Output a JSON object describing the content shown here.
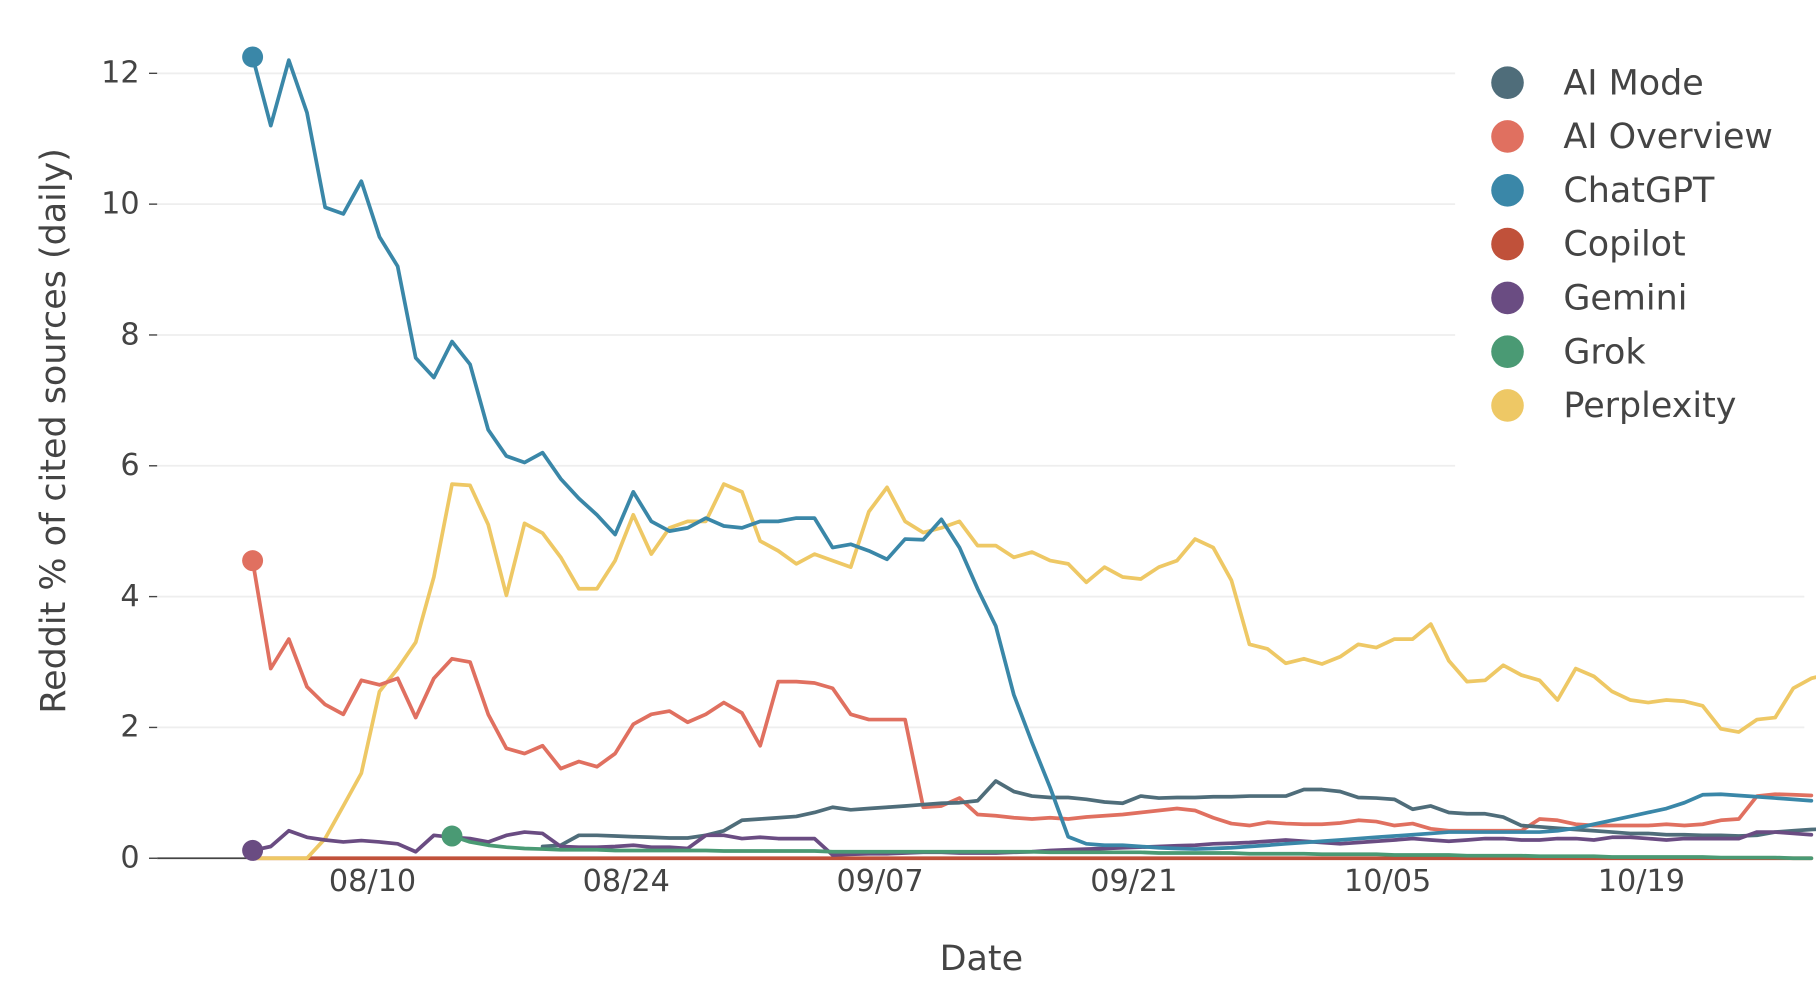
{
  "chart_data": {
    "type": "line",
    "title": "",
    "xlabel": "Date",
    "ylabel": "Reddit % of cited sources (daily)",
    "ylim": [
      0,
      12.5
    ],
    "yticks": [
      0,
      2,
      4,
      6,
      8,
      10,
      12
    ],
    "xtick_labels": [
      "08/10",
      "08/24",
      "09/07",
      "09/21",
      "10/05",
      "10/19"
    ],
    "x_start": "08/04",
    "x_end": "10/29",
    "grid": true,
    "legend_position": "top-right",
    "legend": [
      "AI Mode",
      "AI Overview",
      "ChatGPT",
      "Copilot",
      "Gemini",
      "Grok",
      "Perplexity"
    ],
    "series": [
      {
        "name": "AI Mode",
        "color": "#4f6d7a",
        "start_index": 16,
        "values": [
          0.18,
          0.2,
          0.35,
          0.35,
          0.34,
          0.33,
          0.32,
          0.31,
          0.31,
          0.35,
          0.42,
          0.58,
          0.6,
          0.62,
          0.64,
          0.7,
          0.78,
          0.74,
          0.76,
          0.78,
          0.8,
          0.82,
          0.84,
          0.85,
          0.88,
          1.18,
          1.02,
          0.95,
          0.93,
          0.93,
          0.9,
          0.86,
          0.84,
          0.95,
          0.92,
          0.93,
          0.93,
          0.94,
          0.94,
          0.95,
          0.95,
          0.95,
          1.05,
          1.05,
          1.02,
          0.93,
          0.92,
          0.9,
          0.75,
          0.8,
          0.7,
          0.68,
          0.68,
          0.63,
          0.5,
          0.48,
          0.46,
          0.44,
          0.42,
          0.4,
          0.38,
          0.38,
          0.36,
          0.36,
          0.35,
          0.35,
          0.34,
          0.35,
          0.4,
          0.42,
          0.44,
          0.45
        ]
      },
      {
        "name": "AI Overview",
        "color": "#e07060",
        "start_index": 0,
        "values": [
          4.55,
          2.9,
          3.35,
          2.62,
          2.35,
          2.2,
          2.72,
          2.65,
          2.75,
          2.15,
          2.75,
          3.05,
          3.0,
          2.2,
          1.68,
          1.6,
          1.72,
          1.37,
          1.48,
          1.4,
          1.6,
          2.05,
          2.2,
          2.25,
          2.08,
          2.2,
          2.38,
          2.22,
          1.72,
          2.7,
          2.7,
          2.68,
          2.6,
          2.2,
          2.12,
          2.12,
          2.12,
          0.78,
          0.8,
          0.92,
          0.67,
          0.65,
          0.62,
          0.6,
          0.62,
          0.6,
          0.63,
          0.65,
          0.67,
          0.7,
          0.73,
          0.76,
          0.73,
          0.62,
          0.53,
          0.5,
          0.55,
          0.53,
          0.52,
          0.52,
          0.54,
          0.58,
          0.56,
          0.5,
          0.53,
          0.45,
          0.42,
          0.42,
          0.42,
          0.42,
          0.42,
          0.6,
          0.58,
          0.52,
          0.5,
          0.5,
          0.5,
          0.5,
          0.52,
          0.5,
          0.52,
          0.58,
          0.6,
          0.95,
          0.98,
          0.97,
          0.96
        ]
      },
      {
        "name": "ChatGPT",
        "color": "#3a87a8",
        "start_index": 0,
        "values": [
          12.25,
          11.2,
          12.2,
          11.4,
          9.95,
          9.85,
          10.35,
          9.5,
          9.05,
          7.65,
          7.35,
          7.9,
          7.55,
          6.55,
          6.15,
          6.05,
          6.2,
          5.8,
          5.5,
          5.25,
          4.95,
          5.6,
          5.15,
          5.0,
          5.05,
          5.2,
          5.08,
          5.05,
          5.15,
          5.15,
          5.2,
          5.2,
          4.75,
          4.8,
          4.7,
          4.57,
          4.88,
          4.87,
          5.18,
          4.75,
          4.12,
          3.55,
          2.5,
          1.77,
          1.08,
          0.33,
          0.22,
          0.2,
          0.2,
          0.18,
          0.16,
          0.15,
          0.14,
          0.15,
          0.16,
          0.18,
          0.2,
          0.22,
          0.24,
          0.26,
          0.28,
          0.3,
          0.32,
          0.34,
          0.36,
          0.38,
          0.4,
          0.4,
          0.4,
          0.4,
          0.4,
          0.4,
          0.42,
          0.46,
          0.52,
          0.58,
          0.64,
          0.7,
          0.76,
          0.85,
          0.97,
          0.98,
          0.96,
          0.94,
          0.92,
          0.9,
          0.88
        ]
      },
      {
        "name": "Copilot",
        "color": "#c0513a",
        "start_index": 0,
        "values": [
          0.0,
          0.0,
          0.0,
          0.0,
          0.0,
          0.0,
          0.0,
          0.0,
          0.0,
          0.0,
          0.0,
          0.0,
          0.0,
          0.0,
          0.0,
          0.0,
          0.0,
          0.0,
          0.0,
          0.0,
          0.0,
          0.0,
          0.0,
          0.0,
          0.0,
          0.0,
          0.0,
          0.0,
          0.0,
          0.0,
          0.0,
          0.0,
          0.0,
          0.0,
          0.0,
          0.0,
          0.0,
          0.0,
          0.0,
          0.0,
          0.0,
          0.0,
          0.0,
          0.0,
          0.0,
          0.0,
          0.0,
          0.0,
          0.0,
          0.0,
          0.0,
          0.0,
          0.0,
          0.0,
          0.0,
          0.0,
          0.0,
          0.0,
          0.0,
          0.0,
          0.0,
          0.0,
          0.0,
          0.0,
          0.0,
          0.0,
          0.0,
          0.0,
          0.0,
          0.0,
          0.0,
          0.0,
          0.0,
          0.0,
          0.0,
          0.0,
          0.0,
          0.0,
          0.0,
          0.0,
          0.0,
          0.0,
          0.0,
          0.0,
          0.0,
          0.0,
          0.0
        ]
      },
      {
        "name": "Gemini",
        "color": "#6a4c82",
        "start_index": 0,
        "values": [
          0.12,
          0.18,
          0.42,
          0.32,
          0.28,
          0.25,
          0.27,
          0.25,
          0.22,
          0.1,
          0.35,
          0.32,
          0.3,
          0.25,
          0.35,
          0.4,
          0.38,
          0.18,
          0.17,
          0.17,
          0.18,
          0.2,
          0.17,
          0.17,
          0.15,
          0.35,
          0.35,
          0.3,
          0.32,
          0.3,
          0.3,
          0.3,
          0.05,
          0.06,
          0.07,
          0.07,
          0.08,
          0.09,
          0.09,
          0.08,
          0.08,
          0.08,
          0.09,
          0.1,
          0.12,
          0.13,
          0.14,
          0.15,
          0.16,
          0.17,
          0.18,
          0.19,
          0.2,
          0.22,
          0.23,
          0.24,
          0.26,
          0.28,
          0.26,
          0.24,
          0.22,
          0.24,
          0.26,
          0.28,
          0.3,
          0.28,
          0.26,
          0.28,
          0.3,
          0.3,
          0.28,
          0.28,
          0.3,
          0.3,
          0.28,
          0.32,
          0.32,
          0.3,
          0.28,
          0.3,
          0.3,
          0.3,
          0.3,
          0.4,
          0.4,
          0.38,
          0.36
        ]
      },
      {
        "name": "Grok",
        "color": "#4a9a74",
        "start_index": 11,
        "values": [
          0.34,
          0.25,
          0.2,
          0.17,
          0.15,
          0.14,
          0.13,
          0.13,
          0.13,
          0.12,
          0.12,
          0.12,
          0.12,
          0.12,
          0.12,
          0.11,
          0.11,
          0.11,
          0.11,
          0.11,
          0.11,
          0.1,
          0.1,
          0.1,
          0.1,
          0.1,
          0.1,
          0.1,
          0.1,
          0.1,
          0.1,
          0.1,
          0.1,
          0.09,
          0.09,
          0.09,
          0.09,
          0.09,
          0.09,
          0.08,
          0.08,
          0.08,
          0.08,
          0.08,
          0.07,
          0.07,
          0.07,
          0.07,
          0.06,
          0.06,
          0.06,
          0.06,
          0.05,
          0.05,
          0.05,
          0.05,
          0.04,
          0.04,
          0.04,
          0.04,
          0.03,
          0.03,
          0.03,
          0.03,
          0.02,
          0.02,
          0.02,
          0.02,
          0.02,
          0.02,
          0.01,
          0.01,
          0.01,
          0.01,
          0.0,
          0.0
        ]
      },
      {
        "name": "Perplexity",
        "color": "#eec865",
        "start_index": 0,
        "values": [
          0.0,
          0.0,
          0.0,
          0.0,
          0.3,
          0.8,
          1.3,
          2.55,
          2.9,
          3.3,
          4.3,
          5.72,
          5.7,
          5.1,
          4.02,
          5.12,
          4.97,
          4.6,
          4.12,
          4.12,
          4.55,
          5.25,
          4.65,
          5.05,
          5.15,
          5.15,
          5.72,
          5.6,
          4.85,
          4.7,
          4.5,
          4.65,
          4.55,
          4.45,
          5.3,
          5.67,
          5.15,
          4.98,
          5.05,
          5.15,
          4.78,
          4.78,
          4.6,
          4.68,
          4.55,
          4.5,
          4.22,
          4.45,
          4.3,
          4.27,
          4.45,
          4.55,
          4.88,
          4.75,
          4.25,
          3.27,
          3.2,
          2.98,
          3.05,
          2.97,
          3.08,
          3.27,
          3.22,
          3.35,
          3.35,
          3.58,
          3.02,
          2.7,
          2.72,
          2.95,
          2.8,
          2.72,
          2.42,
          2.9,
          2.78,
          2.55,
          2.42,
          2.38,
          2.42,
          2.4,
          2.33,
          1.98,
          1.93,
          2.12,
          2.15,
          2.6,
          2.75,
          2.82,
          2.88
        ]
      }
    ]
  },
  "legend_items": [
    {
      "label": "AI Mode",
      "color": "#4f6d7a"
    },
    {
      "label": "AI Overview",
      "color": "#e07060"
    },
    {
      "label": "ChatGPT",
      "color": "#3a87a8"
    },
    {
      "label": "Copilot",
      "color": "#c0513a"
    },
    {
      "label": "Gemini",
      "color": "#6a4c82"
    },
    {
      "label": "Grok",
      "color": "#4a9a74"
    },
    {
      "label": "Perplexity",
      "color": "#eec865"
    }
  ],
  "axes": {
    "x_title": "Date",
    "y_title": "Reddit % of cited sources (daily)",
    "y_tick_labels": [
      "0",
      "2",
      "4",
      "6",
      "8",
      "10",
      "12"
    ],
    "x_tick_labels": [
      "08/10",
      "08/24",
      "09/07",
      "09/21",
      "10/05",
      "10/19"
    ]
  }
}
